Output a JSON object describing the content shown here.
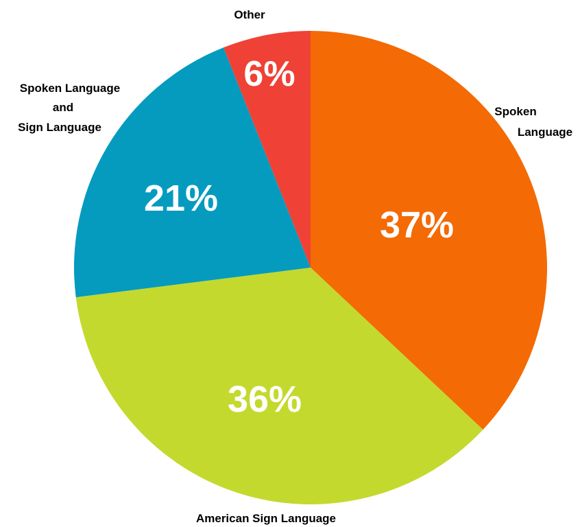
{
  "chart_data": {
    "type": "pie",
    "categories": [
      "Spoken Language",
      "American Sign Language",
      "Spoken Language and Sign Language",
      "Other"
    ],
    "values": [
      37,
      36,
      21,
      6
    ],
    "data_labels": [
      "37%",
      "36%",
      "21%",
      "6%"
    ],
    "label_lines": {
      "spoken": [
        "Spoken",
        "Language"
      ],
      "asl": [
        "American Sign Language"
      ],
      "both": [
        "Spoken Language",
        "and",
        "Sign Language"
      ],
      "other": [
        "Other"
      ]
    },
    "colors": [
      "#f46a04",
      "#c4d92e",
      "#049bbf",
      "#ef4136"
    ],
    "start_angle": "12 o'clock",
    "direction": "clockwise",
    "legend": "none",
    "title": ""
  }
}
